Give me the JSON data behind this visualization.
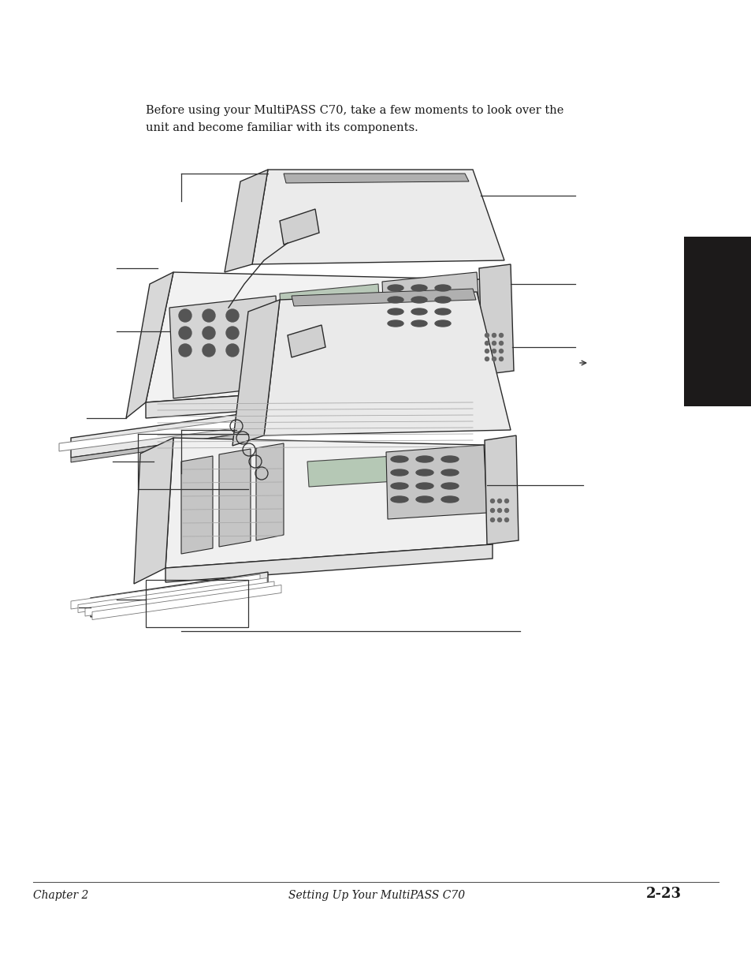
{
  "bg_color": "#ffffff",
  "text_intro_line1": "Before using your MultiPASS C70, take a few moments to look over the",
  "text_intro_line2": "unit and become familiar with its components.",
  "footer_left": "Chapter 2",
  "footer_center": "Setting Up Your MultiPASS C70",
  "footer_right": "2-23",
  "black_tab_color": "#1c1a1a",
  "line_color": "#2a2a2a",
  "body_fill": "#f0f0f0",
  "body_fill2": "#e0e0e0",
  "panel_fill": "#c8c8c8",
  "dark_fill": "#d0d0d0",
  "callout_color": "#333333",
  "font_intro": 10.5,
  "font_footer": 10,
  "font_footer_bold": 13
}
